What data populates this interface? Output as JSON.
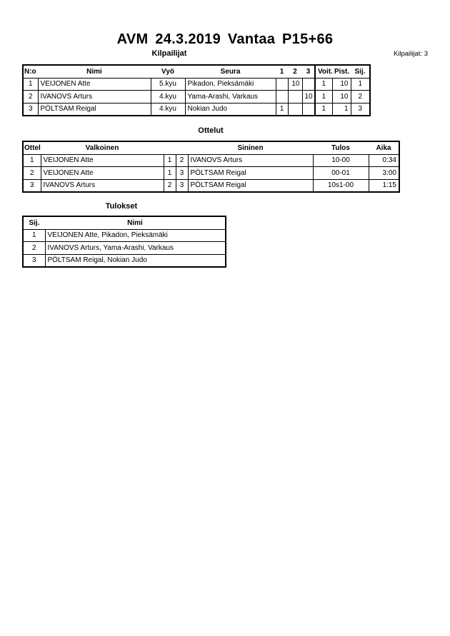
{
  "header": {
    "title": "AVM  24.3.2019  Vantaa   P15+66",
    "competitors_count": "Kilpailijat: 3"
  },
  "competitors": {
    "heading": "Kilpailijat",
    "columns": [
      "N:o",
      "Nimi",
      "Vyö",
      "Seura",
      "1",
      "2",
      "3",
      "Voit.",
      "Pist.",
      "Sij."
    ],
    "rows": [
      [
        "1",
        "VEIJONEN Atte",
        "5.kyu",
        "Pikadon, Pieksämäki",
        "",
        "10",
        "",
        "1",
        "10",
        "1"
      ],
      [
        "2",
        "IVANOVS Arturs",
        "4.kyu",
        "Yama-Arashi, Varkaus",
        "",
        "",
        "10",
        "1",
        "10",
        "2"
      ],
      [
        "3",
        "PÖLTSAM Reigal",
        "4.kyu",
        "Nokian Judo",
        "1",
        "",
        "",
        "1",
        "1",
        "3"
      ]
    ]
  },
  "matches": {
    "heading": "Ottelut",
    "columns": [
      "Ottelu",
      "Valkoinen",
      "",
      "",
      "Sininen",
      "Tulos",
      "Aika"
    ],
    "rows": [
      [
        "1",
        "VEIJONEN Atte",
        "1",
        "2",
        "IVANOVS Arturs",
        "10-00",
        "0:34"
      ],
      [
        "2",
        "VEIJONEN Atte",
        "1",
        "3",
        "PÖLTSAM Reigal",
        "00-01",
        "3:00"
      ],
      [
        "3",
        "IVANOVS Arturs",
        "2",
        "3",
        "PÖLTSAM Reigal",
        "10s1-00",
        "1:15"
      ]
    ]
  },
  "results": {
    "heading": "Tulokset",
    "columns": [
      "Sij.",
      "Nimi"
    ],
    "rows": [
      [
        "1",
        "VEIJONEN Atte, Pikadon, Pieksämäki"
      ],
      [
        "2",
        "IVANOVS Arturs, Yama-Arashi, Varkaus"
      ],
      [
        "3",
        "PÖLTSAM Reigal, Nokian Judo"
      ]
    ]
  }
}
